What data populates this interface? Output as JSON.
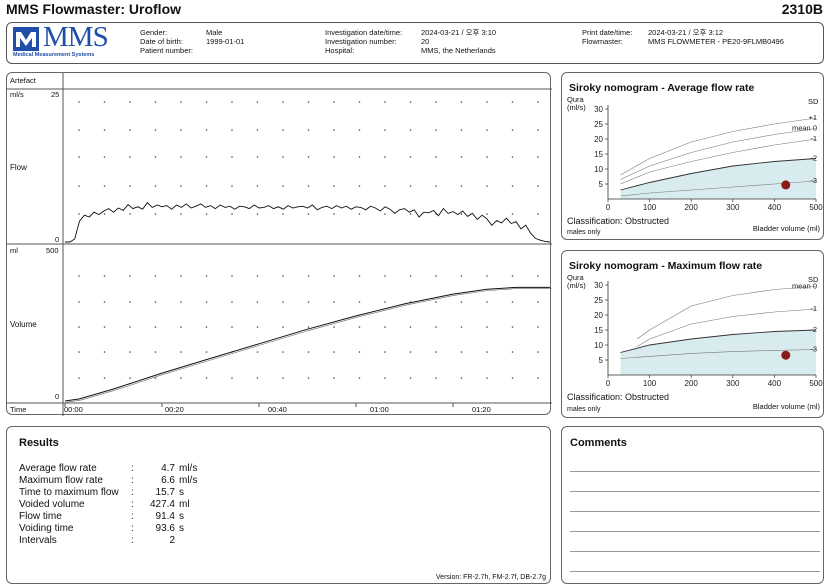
{
  "report": {
    "title": "MMS Flowmaster: Uroflow",
    "code": "2310B"
  },
  "logo": {
    "text": "MMS",
    "subtitle": "Medical Measurement Systems",
    "color": "#1f4fa8"
  },
  "patient": {
    "gender_label": "Gender:",
    "gender": "Male",
    "dob_label": "Date of birth:",
    "dob": "1999-01-01",
    "number_label": "Patient number:",
    "number": ""
  },
  "investigation": {
    "datetime_label": "Investigation date/time:",
    "datetime": "2024-03-21 / 오후 3:10",
    "number_label": "Investigation number:",
    "number": "20",
    "hospital_label": "Hospital:",
    "hospital": "MMS, the Netherlands"
  },
  "print": {
    "datetime_label": "Print date/time:",
    "datetime": "2024-03-21 / 오후 3:12",
    "flowmaster_label": "Flowmaster:",
    "flowmaster": "MMS FLOWMETER - PE20-9FLMB0496"
  },
  "chart_data": [
    {
      "type": "line",
      "name": "flow",
      "track_label": "Artefact",
      "ylabel": "Flow",
      "yunit": "ml/s",
      "ylim": [
        0,
        25
      ],
      "y_tick_labels": [
        "25",
        "0"
      ],
      "xlim": [
        0,
        100
      ],
      "x": [
        0,
        1,
        2,
        3,
        4,
        5,
        6,
        7,
        8,
        9,
        10,
        11,
        12,
        13,
        14,
        15,
        16,
        17,
        18,
        19,
        20,
        21,
        22,
        23,
        24,
        25,
        26,
        27,
        28,
        29,
        30,
        31,
        32,
        33,
        34,
        35,
        36,
        37,
        38,
        39,
        40,
        41,
        42,
        43,
        44,
        45,
        46,
        47,
        48,
        49,
        50,
        51,
        52,
        53,
        54,
        55,
        56,
        57,
        58,
        59,
        60,
        61,
        62,
        63,
        64,
        65,
        66,
        67,
        68,
        69,
        70,
        71,
        72,
        73,
        74,
        75,
        76,
        77,
        78,
        79,
        80,
        81,
        82,
        83,
        84,
        85,
        86,
        87,
        88,
        89,
        90,
        91,
        92,
        93,
        94,
        95,
        96,
        97,
        98,
        99,
        100
      ],
      "y": [
        0,
        0,
        0.5,
        3.5,
        4.5,
        4.2,
        5.0,
        4.6,
        5.2,
        5.6,
        5.0,
        5.7,
        5.3,
        6.3,
        5.6,
        5.9,
        5.5,
        6.6,
        5.8,
        6.2,
        5.9,
        6.1,
        5.5,
        6.2,
        5.8,
        6.4,
        5.7,
        6.0,
        6.4,
        5.8,
        6.1,
        5.6,
        6.2,
        5.8,
        6.0,
        5.5,
        6.0,
        5.9,
        5.6,
        6.2,
        5.7,
        5.8,
        6.1,
        5.6,
        5.9,
        5.5,
        6.1,
        5.7,
        5.9,
        6.0,
        5.7,
        6.2,
        5.4,
        5.8,
        6.0,
        5.6,
        6.1,
        5.7,
        6.0,
        5.5,
        5.9,
        5.8,
        5.4,
        6.0,
        5.7,
        5.2,
        5.9,
        5.5,
        4.8,
        5.4,
        5.6,
        5.0,
        5.4,
        4.2,
        5.0,
        4.9,
        5.3,
        4.4,
        5.6,
        4.8,
        5.1,
        4.6,
        5.2,
        4.3,
        4.8,
        3.8,
        4.5,
        3.9,
        2.8,
        3.6,
        3.2,
        4.0,
        3.1,
        3.4,
        2.2,
        2.8,
        1.5,
        0.6,
        0.3,
        0.1,
        0
      ],
      "x_tick_labels": [
        "00:00",
        "00:20",
        "00:40",
        "01:00",
        "01:20"
      ]
    },
    {
      "type": "line",
      "name": "volume",
      "ylabel": "Volume",
      "yunit": "ml",
      "ylim": [
        0,
        500
      ],
      "y_tick_labels": [
        "500",
        "0"
      ],
      "xlim": [
        0,
        100
      ],
      "x": [
        0,
        3,
        10,
        20,
        30,
        40,
        50,
        60,
        70,
        80,
        87,
        93,
        100
      ],
      "y": [
        0,
        8,
        45,
        105,
        160,
        215,
        270,
        320,
        365,
        402,
        420,
        427,
        427
      ],
      "xlabel": "Time",
      "x_tick_labels": [
        "00:00",
        "00:20",
        "00:40",
        "01:00",
        "01:20"
      ]
    },
    {
      "type": "scatter",
      "name": "siroky-average",
      "title": "Siroky nomogram - Average flow rate",
      "ylabel": "Qura",
      "yunit": "(ml/s)",
      "xlabel": "Bladder volume (ml)",
      "xlim": [
        0,
        500
      ],
      "ylim": [
        0,
        30
      ],
      "x_tick_labels": [
        "0",
        "100",
        "200",
        "300",
        "400",
        "500"
      ],
      "y_tick_labels": [
        "30",
        "25",
        "20",
        "15",
        "10",
        "5"
      ],
      "sd_header": "SD",
      "sd_labels": [
        "+1",
        "mean 0",
        "-1",
        "-2",
        "-3"
      ],
      "curves": [
        {
          "x": [
            30,
            100,
            200,
            300,
            400,
            500
          ],
          "y": [
            8,
            13.5,
            19,
            22.5,
            25,
            27
          ]
        },
        {
          "x": [
            30,
            100,
            200,
            300,
            400,
            500
          ],
          "y": [
            6.5,
            11,
            15.5,
            19,
            21.5,
            23.5
          ]
        },
        {
          "x": [
            30,
            100,
            200,
            300,
            400,
            500
          ],
          "y": [
            5,
            9,
            12.5,
            15.5,
            18,
            20
          ]
        },
        {
          "x": [
            30,
            100,
            200,
            300,
            400,
            500
          ],
          "y": [
            3,
            5.5,
            8.5,
            11,
            12.5,
            13.5
          ]
        },
        {
          "x": [
            30,
            100,
            200,
            300,
            400,
            500
          ],
          "y": [
            1,
            2,
            3,
            4,
            5,
            6
          ]
        }
      ],
      "point": {
        "x": 427.4,
        "y": 4.7
      },
      "classification": "Classification: Obstructed",
      "note": "males only"
    },
    {
      "type": "scatter",
      "name": "siroky-maximum",
      "title": "Siroky nomogram - Maximum flow rate",
      "ylabel": "Qura",
      "yunit": "(ml/s)",
      "xlabel": "Bladder volume (ml)",
      "xlim": [
        0,
        500
      ],
      "ylim": [
        0,
        30
      ],
      "x_tick_labels": [
        "0",
        "100",
        "200",
        "300",
        "400",
        "500"
      ],
      "y_tick_labels": [
        "30",
        "25",
        "20",
        "15",
        "10",
        "5"
      ],
      "sd_header": "SD",
      "sd_labels": [
        "mean 0",
        "-1",
        "-2",
        "-3"
      ],
      "curves": [
        {
          "x": [
            70,
            100,
            200,
            300,
            400,
            500
          ],
          "y": [
            12,
            15,
            23,
            26.5,
            28.5,
            29.5
          ]
        },
        {
          "x": [
            70,
            100,
            200,
            300,
            400,
            500
          ],
          "y": [
            9.5,
            12,
            17,
            19.5,
            21,
            22
          ]
        },
        {
          "x": [
            30,
            100,
            200,
            300,
            400,
            500
          ],
          "y": [
            7.5,
            10,
            12,
            13.5,
            14.5,
            15
          ]
        },
        {
          "x": [
            30,
            100,
            200,
            300,
            400,
            500
          ],
          "y": [
            5.5,
            6.2,
            7.2,
            7.8,
            8.2,
            8.5
          ]
        }
      ],
      "point": {
        "x": 427.4,
        "y": 6.6
      },
      "classification": "Classification: Obstructed",
      "note": "males only"
    }
  ],
  "results": {
    "title": "Results",
    "rows": [
      {
        "label": "Average flow rate",
        "value": "4.7",
        "unit": "ml/s"
      },
      {
        "label": "Maximum flow rate",
        "value": "6.6",
        "unit": "ml/s"
      },
      {
        "label": "Time to maximum flow",
        "value": "15.7",
        "unit": "s"
      },
      {
        "label": "Voided volume",
        "value": "427.4",
        "unit": "ml"
      },
      {
        "label": "Flow time",
        "value": "91.4",
        "unit": "s"
      },
      {
        "label": "Voiding time",
        "value": "93.6",
        "unit": "s"
      },
      {
        "label": "Intervals",
        "value": "2",
        "unit": ""
      }
    ],
    "version": "Version: FR-2.7h, FM-2.7f, DB-2.7g"
  },
  "comments": {
    "title": "Comments"
  },
  "colors": {
    "point": "#8b1a1a",
    "shade": "#d8ecef"
  }
}
